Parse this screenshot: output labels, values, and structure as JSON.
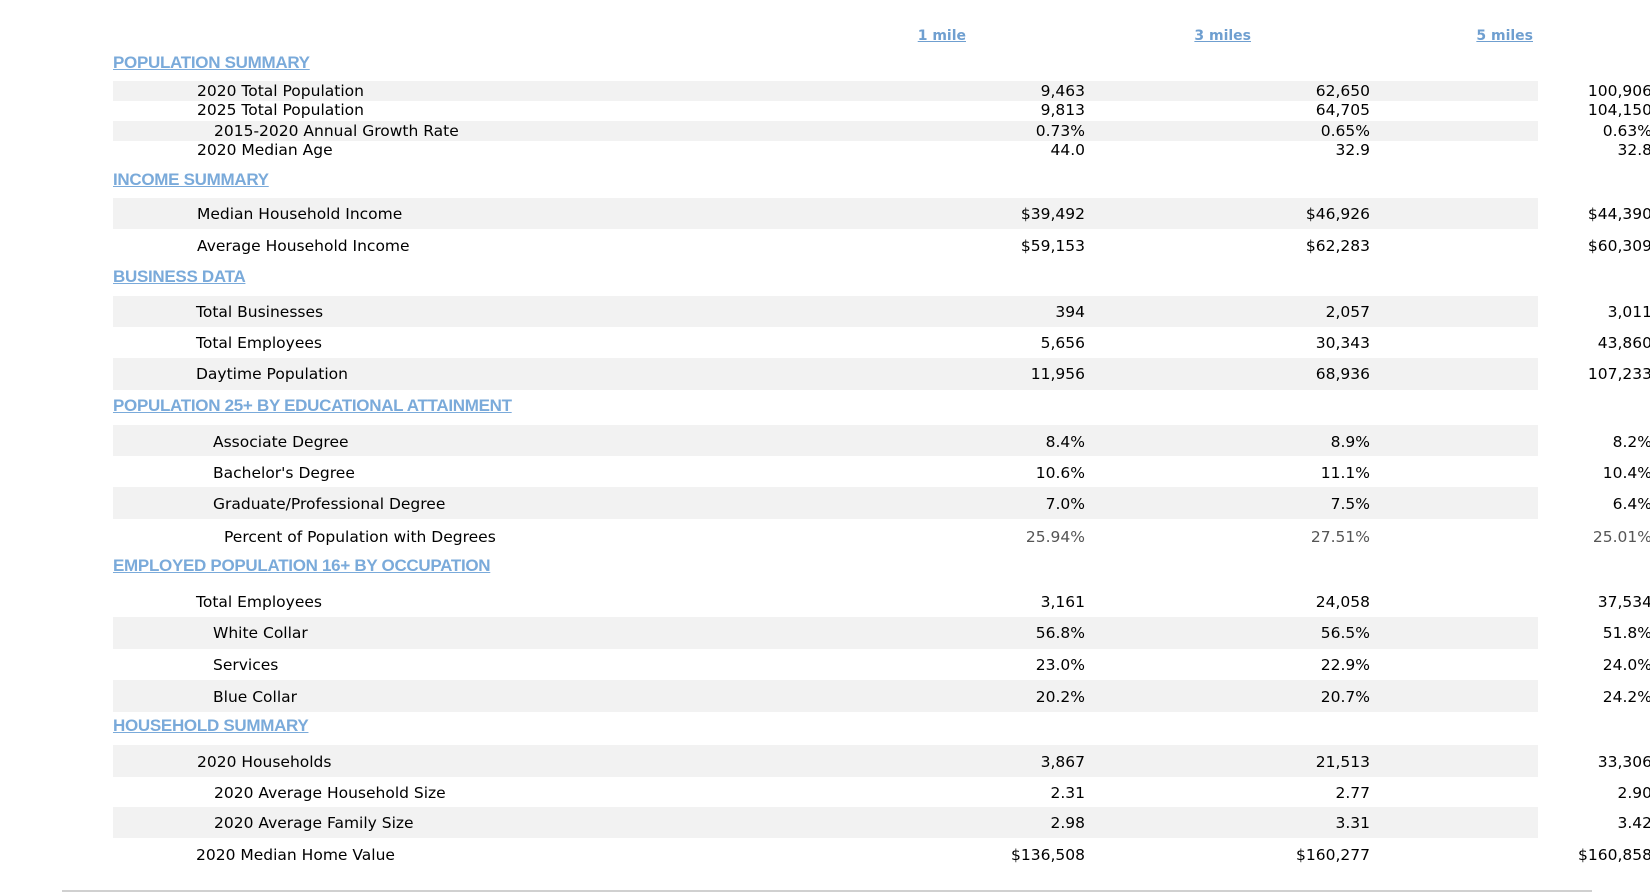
{
  "columns": [
    "1 mile",
    "3 miles",
    "5 miles"
  ],
  "sections": {
    "population": {
      "title": "POPULATION SUMMARY",
      "rows": [
        {
          "label": "2020 Total Population",
          "v": [
            "9,463",
            "62,650",
            "100,906"
          ]
        },
        {
          "label": "2025 Total Population",
          "v": [
            "9,813",
            "64,705",
            "104,150"
          ]
        },
        {
          "label": "2015-2020 Annual Growth Rate",
          "v": [
            "0.73%",
            "0.65%",
            "0.63%"
          ]
        },
        {
          "label": "2020 Median Age",
          "v": [
            "44.0",
            "32.9",
            "32.8"
          ]
        }
      ]
    },
    "income": {
      "title": "INCOME SUMMARY",
      "rows": [
        {
          "label": "Median Household Income",
          "v": [
            "$39,492",
            "$46,926",
            "$44,390"
          ]
        },
        {
          "label": "Average Household Income",
          "v": [
            "$59,153",
            "$62,283",
            "$60,309"
          ]
        }
      ]
    },
    "business": {
      "title": "BUSINESS DATA",
      "rows": [
        {
          "label": "Total Businesses",
          "v": [
            "394",
            "2,057",
            "3,011"
          ]
        },
        {
          "label": "Total Employees",
          "v": [
            "5,656",
            "30,343",
            "43,860"
          ]
        },
        {
          "label": "Daytime Population",
          "v": [
            "11,956",
            "68,936",
            "107,233"
          ]
        }
      ]
    },
    "education": {
      "title": "POPULATION 25+ BY EDUCATIONAL ATTAINMENT",
      "rows": [
        {
          "label": "Associate Degree",
          "v": [
            "8.4%",
            "8.9%",
            "8.2%"
          ]
        },
        {
          "label": "Bachelor's Degree",
          "v": [
            "10.6%",
            "11.1%",
            "10.4%"
          ]
        },
        {
          "label": "Graduate/Professional Degree",
          "v": [
            "7.0%",
            "7.5%",
            "6.4%"
          ]
        },
        {
          "label": "Percent of Population with Degrees",
          "v": [
            "25.94%",
            "27.51%",
            "25.01%"
          ]
        }
      ]
    },
    "occupation": {
      "title": "EMPLOYED POPULATION 16+ BY OCCUPATION",
      "rows": [
        {
          "label": "Total Employees",
          "v": [
            "3,161",
            "24,058",
            "37,534"
          ]
        },
        {
          "label": "White Collar",
          "v": [
            "56.8%",
            "56.5%",
            "51.8%"
          ]
        },
        {
          "label": "Services",
          "v": [
            "23.0%",
            "22.9%",
            "24.0%"
          ]
        },
        {
          "label": "Blue Collar",
          "v": [
            "20.2%",
            "20.7%",
            "24.2%"
          ]
        }
      ]
    },
    "household": {
      "title": "HOUSEHOLD SUMMARY",
      "rows": [
        {
          "label": "2020 Households",
          "v": [
            "3,867",
            "21,513",
            "33,306"
          ]
        },
        {
          "label": "2020 Average Household Size",
          "v": [
            "2.31",
            "2.77",
            "2.90"
          ]
        },
        {
          "label": "2020 Average Family Size",
          "v": [
            "2.98",
            "3.31",
            "3.42"
          ]
        },
        {
          "label": "2020 Median Home Value",
          "v": [
            "$136,508",
            "$160,277",
            "$160,858"
          ]
        }
      ]
    }
  }
}
